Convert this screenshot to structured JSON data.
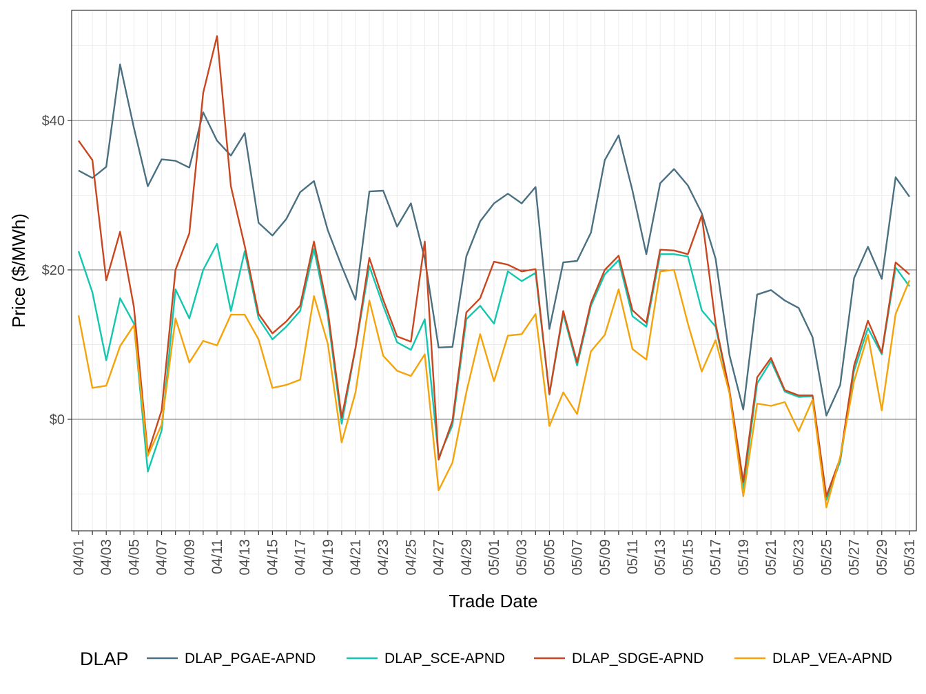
{
  "chart_data": {
    "type": "line",
    "xlabel": "Trade Date",
    "ylabel": "Price ($/MWh)",
    "ylim": [
      -15,
      54
    ],
    "y_ticks": [
      0,
      20,
      40
    ],
    "y_tick_labels": [
      "$0",
      "$20",
      "$40"
    ],
    "grid": true,
    "legend_position": "bottom",
    "legend_title": "DLAP",
    "x": [
      "04/01",
      "04/02",
      "04/03",
      "04/04",
      "04/05",
      "04/06",
      "04/07",
      "04/08",
      "04/09",
      "04/10",
      "04/11",
      "04/12",
      "04/13",
      "04/14",
      "04/15",
      "04/16",
      "04/17",
      "04/18",
      "04/19",
      "04/20",
      "04/21",
      "04/22",
      "04/23",
      "04/24",
      "04/25",
      "04/26",
      "04/27",
      "04/28",
      "04/29",
      "04/30",
      "05/01",
      "05/02",
      "05/03",
      "05/04",
      "05/05",
      "05/06",
      "05/07",
      "05/08",
      "05/09",
      "05/10",
      "05/11",
      "05/12",
      "05/13",
      "05/14",
      "05/15",
      "05/16",
      "05/17",
      "05/18",
      "05/19",
      "05/20",
      "05/21",
      "05/22",
      "05/23",
      "05/24",
      "05/25",
      "05/26",
      "05/27",
      "05/28",
      "05/29",
      "05/30",
      "05/31"
    ],
    "x_tick_labels": [
      "04/01",
      "04/03",
      "04/05",
      "04/07",
      "04/09",
      "04/11",
      "04/13",
      "04/15",
      "04/17",
      "04/19",
      "04/21",
      "04/23",
      "04/25",
      "04/27",
      "04/29",
      "05/01",
      "05/03",
      "05/05",
      "05/07",
      "05/09",
      "05/11",
      "05/13",
      "05/15",
      "05/17",
      "05/19",
      "05/21",
      "05/23",
      "05/25",
      "05/27",
      "05/29",
      "05/31"
    ],
    "series": [
      {
        "name": "DLAP_PGAE-APND",
        "color": "#4a7082",
        "values": [
          33.3,
          32.3,
          33.8,
          47.5,
          39,
          31.2,
          34.8,
          34.6,
          33.7,
          41.1,
          37.3,
          35.3,
          38.3,
          26.3,
          24.6,
          26.8,
          30.4,
          31.9,
          25.3,
          20.5,
          16,
          30.5,
          30.6,
          25.8,
          28.9,
          21.5,
          9.6,
          9.7,
          21.8,
          26.5,
          28.9,
          30.2,
          28.9,
          31.1,
          12.1,
          21,
          21.2,
          25,
          34.7,
          38,
          30.6,
          22.1,
          31.6,
          33.5,
          31.3,
          27.6,
          21.5,
          8.6,
          1.3,
          16.7,
          17.3,
          15.9,
          14.9,
          11,
          0.5,
          4.6,
          18.9,
          23.1,
          18.8,
          32.4,
          29.8
        ]
      },
      {
        "name": "DLAP_SCE-APND",
        "color": "#12c7b0",
        "values": [
          22.5,
          17,
          7.9,
          16.2,
          12.8,
          -7,
          -1.5,
          17.4,
          13.5,
          20,
          23.5,
          14.5,
          22.5,
          13.5,
          10.7,
          12.4,
          14.5,
          22.8,
          13.8,
          -0.6,
          9.5,
          20.5,
          15.2,
          10.3,
          9.3,
          13.4,
          -5.1,
          -0.8,
          13.4,
          15.2,
          12.8,
          19.8,
          18.5,
          19.6,
          3.3,
          14.1,
          7.2,
          15.2,
          19.4,
          21.3,
          13.8,
          12.4,
          22.1,
          22.1,
          21.8,
          14.6,
          12.4,
          3.8,
          -9.3,
          4.8,
          7.8,
          3.7,
          3,
          3.1,
          -10.8,
          -5.6,
          6.5,
          12.2,
          8.7,
          20.3,
          17.8
        ]
      },
      {
        "name": "DLAP_SDGE-APND",
        "color": "#c9461e",
        "values": [
          37.3,
          34.7,
          18.6,
          25.1,
          15,
          -4.6,
          1.2,
          20,
          24.9,
          43.7,
          51.3,
          31.2,
          23.2,
          14.1,
          11.5,
          13.1,
          15.2,
          23.8,
          14.6,
          0.2,
          9.6,
          21.6,
          16,
          11.1,
          10.4,
          23.8,
          -5.4,
          -0.2,
          14.3,
          16.2,
          21.1,
          20.7,
          19.8,
          20.1,
          3.4,
          14.5,
          7.6,
          15.6,
          20,
          21.9,
          14.6,
          12.9,
          22.7,
          22.6,
          22.1,
          27.3,
          12.8,
          3.9,
          -8.4,
          5.6,
          8.2,
          3.9,
          3.2,
          3.2,
          -10.3,
          -5.2,
          7.2,
          13.2,
          8.9,
          21,
          19.4
        ]
      },
      {
        "name": "DLAP_VEA-APND",
        "color": "#f5a30a",
        "values": [
          13.9,
          4.2,
          4.5,
          9.8,
          12.6,
          -4.9,
          -0.7,
          13.5,
          7.6,
          10.5,
          9.9,
          14,
          14,
          10.7,
          4.2,
          4.6,
          5.3,
          16.5,
          10.1,
          -3.1,
          3.6,
          15.9,
          8.5,
          6.5,
          5.8,
          8.7,
          -9.5,
          -5.8,
          3.6,
          11.4,
          5.1,
          11.2,
          11.4,
          14.1,
          -0.9,
          3.6,
          0.7,
          9.1,
          11.3,
          17.4,
          9.4,
          8,
          19.8,
          20,
          12.8,
          6.4,
          10.6,
          3.5,
          -10.3,
          2.1,
          1.8,
          2.3,
          -1.6,
          2.6,
          -11.8,
          -5,
          5.1,
          11.3,
          1.2,
          14.1,
          18.6
        ]
      }
    ]
  }
}
